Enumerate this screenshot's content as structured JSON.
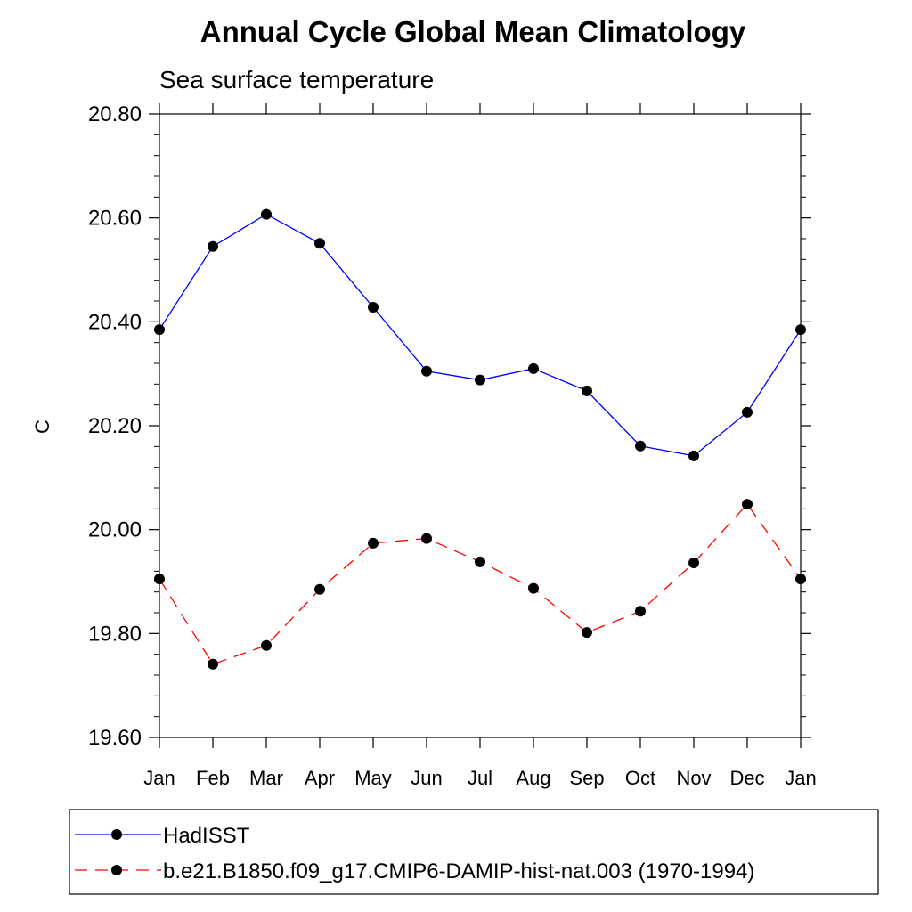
{
  "chart_data": {
    "type": "line",
    "title": "Annual Cycle Global Mean Climatology",
    "subtitle": "Sea surface temperature",
    "ylabel": "C",
    "xlabel": "",
    "ylim": [
      19.6,
      20.8
    ],
    "yticks": [
      "19.60",
      "19.80",
      "20.00",
      "20.20",
      "20.40",
      "20.60",
      "20.80"
    ],
    "categories": [
      "Jan",
      "Feb",
      "Mar",
      "Apr",
      "May",
      "Jun",
      "Jul",
      "Aug",
      "Sep",
      "Oct",
      "Nov",
      "Dec",
      "Jan"
    ],
    "legend_position": "bottom",
    "series": [
      {
        "name": "HadISST",
        "color": "#0000ff",
        "dash": "solid",
        "values": [
          20.385,
          20.545,
          20.607,
          20.551,
          20.428,
          20.305,
          20.288,
          20.31,
          20.267,
          20.161,
          20.142,
          20.226,
          20.385
        ]
      },
      {
        "name": "b.e21.B1850.f09_g17.CMIP6-DAMIP-hist-nat.003 (1970-1994)",
        "color": "#ff0000",
        "dash": "dashed",
        "values": [
          19.905,
          19.741,
          19.777,
          19.885,
          19.974,
          19.983,
          19.938,
          19.887,
          19.802,
          19.843,
          19.936,
          20.049,
          19.905
        ]
      }
    ]
  }
}
